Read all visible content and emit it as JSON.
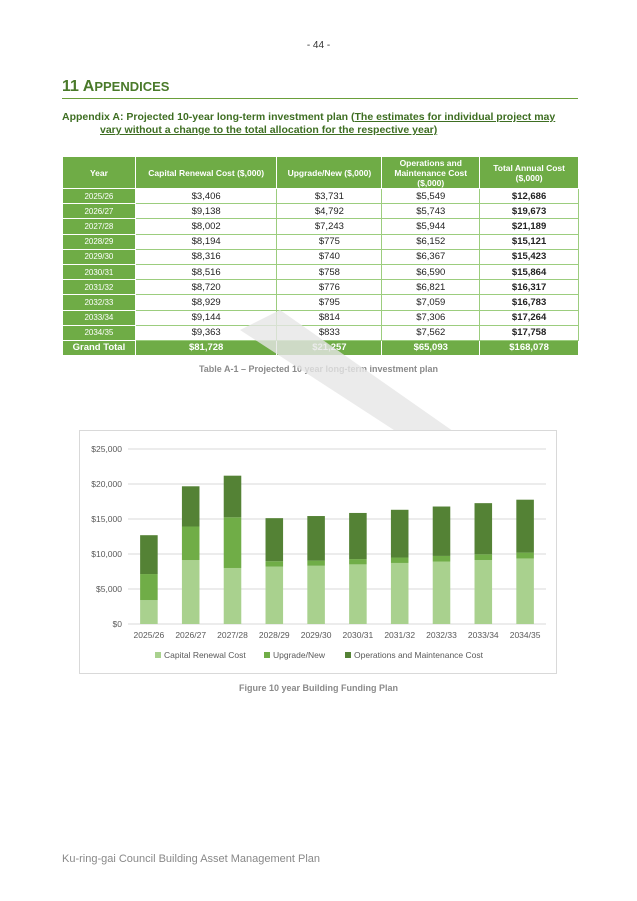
{
  "page_number": "- 44 -",
  "section": {
    "number": "11 ",
    "first_letter": "A",
    "rest": "PPENDICES"
  },
  "appendix": {
    "prefix": "Appendix A: Projected 10-year long-term investment plan (",
    "underlined_1": "The estimates for individual project may",
    "underlined_2": "vary without a change to the total allocation for the respective year)"
  },
  "table": {
    "headers": [
      "Year",
      "Capital Renewal Cost ($,000)",
      "Upgrade/New ($,000)",
      "Operations and Maintenance Cost ($,000)",
      "Total Annual Cost ($,000)"
    ],
    "rows": [
      [
        "2025/26",
        "$3,406",
        "$3,731",
        "$5,549",
        "$12,686"
      ],
      [
        "2026/27",
        "$9,138",
        "$4,792",
        "$5,743",
        "$19,673"
      ],
      [
        "2027/28",
        "$8,002",
        "$7,243",
        "$5,944",
        "$21,189"
      ],
      [
        "2028/29",
        "$8,194",
        "$775",
        "$6,152",
        "$15,121"
      ],
      [
        "2029/30",
        "$8,316",
        "$740",
        "$6,367",
        "$15,423"
      ],
      [
        "2030/31",
        "$8,516",
        "$758",
        "$6,590",
        "$15,864"
      ],
      [
        "2031/32",
        "$8,720",
        "$776",
        "$6,821",
        "$16,317"
      ],
      [
        "2032/33",
        "$8,929",
        "$795",
        "$7,059",
        "$16,783"
      ],
      [
        "2033/34",
        "$9,144",
        "$814",
        "$7,306",
        "$17,264"
      ],
      [
        "2034/35",
        "$9,363",
        "$833",
        "$7,562",
        "$17,758"
      ]
    ],
    "grand_total": [
      "Grand Total",
      "$81,728",
      "$21,257",
      "$65,093",
      "$168,078"
    ],
    "caption": "Table A-1 – Projected 10 year long-term investment plan"
  },
  "chart_data": {
    "type": "bar",
    "stacked": true,
    "categories": [
      "2025/26",
      "2026/27",
      "2027/28",
      "2028/29",
      "2029/30",
      "2030/31",
      "2031/32",
      "2032/33",
      "2033/34",
      "2034/35"
    ],
    "series": [
      {
        "name": "Capital Renewal Cost",
        "color": "#a9d18e",
        "values": [
          3406,
          9138,
          8002,
          8194,
          8316,
          8516,
          8720,
          8929,
          9144,
          9363
        ]
      },
      {
        "name": "Upgrade/New",
        "color": "#70ad47",
        "values": [
          3731,
          4792,
          7243,
          775,
          740,
          758,
          776,
          795,
          814,
          833
        ]
      },
      {
        "name": "Operations and Maintenance Cost",
        "color": "#548235",
        "values": [
          5549,
          5743,
          5944,
          6152,
          6367,
          6590,
          6821,
          7059,
          7306,
          7562
        ]
      }
    ],
    "yticks": [
      "$0",
      "$5,000",
      "$10,000",
      "$15,000",
      "$20,000",
      "$25,000"
    ],
    "ylim": [
      0,
      25000
    ],
    "grid": true,
    "legend": "bottom"
  },
  "chart_caption": "Figure 10 year Building Funding Plan",
  "footer": "Ku-ring-gai Council Building Asset Management Plan",
  "colors": {
    "accent": "#6fac46",
    "heading": "#4a7a2a"
  }
}
